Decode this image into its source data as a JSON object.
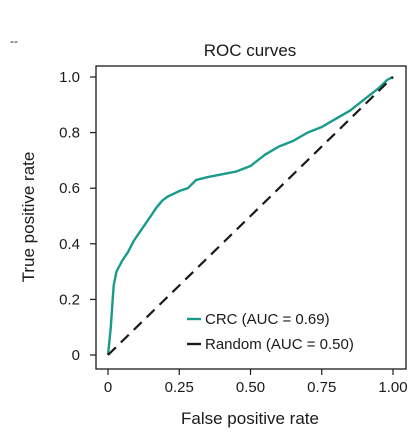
{
  "corner_mark": "--",
  "chart_data": {
    "type": "line",
    "title": "ROC curves",
    "xlabel": "False positive rate",
    "ylabel": "True positive rate",
    "xlim": [
      0,
      1
    ],
    "ylim": [
      0,
      1
    ],
    "grid": false,
    "x_ticks": [
      0,
      0.25,
      0.5,
      0.75,
      1.0
    ],
    "x_tick_labels": [
      "0",
      "0.25",
      "0.50",
      "0.75",
      "1.00"
    ],
    "y_ticks": [
      0,
      0.2,
      0.4,
      0.6,
      0.8,
      1.0
    ],
    "y_tick_labels": [
      "0",
      "0.2",
      "0.4",
      "0.6",
      "0.8",
      "1.0"
    ],
    "legend_position": "bottom-right",
    "series": [
      {
        "name": "CRC (AUC = 0.69)",
        "color": "#1a9a8a",
        "style": "solid",
        "x": [
          0,
          0.005,
          0.01,
          0.015,
          0.02,
          0.03,
          0.04,
          0.05,
          0.07,
          0.09,
          0.11,
          0.13,
          0.15,
          0.17,
          0.19,
          0.21,
          0.23,
          0.25,
          0.28,
          0.31,
          0.35,
          0.4,
          0.45,
          0.5,
          0.55,
          0.6,
          0.65,
          0.7,
          0.75,
          0.8,
          0.85,
          0.9,
          0.95,
          0.98,
          1.0
        ],
        "y": [
          0,
          0.05,
          0.1,
          0.18,
          0.25,
          0.3,
          0.32,
          0.34,
          0.37,
          0.41,
          0.44,
          0.47,
          0.5,
          0.53,
          0.555,
          0.57,
          0.58,
          0.59,
          0.6,
          0.63,
          0.64,
          0.65,
          0.66,
          0.68,
          0.72,
          0.75,
          0.77,
          0.8,
          0.82,
          0.85,
          0.88,
          0.92,
          0.96,
          0.99,
          1.0
        ]
      },
      {
        "name": "Random (AUC = 0.50)",
        "color": "#1a1a1a",
        "style": "dashed",
        "x": [
          0,
          1
        ],
        "y": [
          0,
          1
        ]
      }
    ]
  }
}
